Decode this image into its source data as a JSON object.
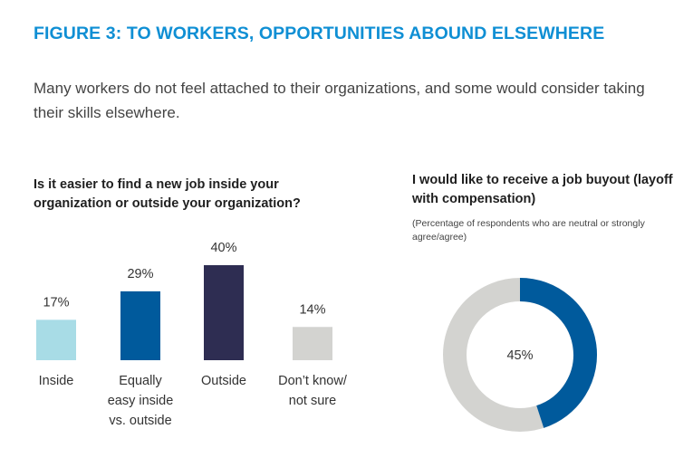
{
  "figure": {
    "title": "FIGURE 3: TO WORKERS, OPPORTUNITIES ABOUND ELSEWHERE",
    "subtitle": "Many workers do not feel attached to their organizations, and some would consider taking their skills elsewhere."
  },
  "chart_data": [
    {
      "type": "bar",
      "title": "Is it easier to find a new job inside your organization or outside your organization?",
      "categories": [
        [
          "Inside"
        ],
        [
          "Equally",
          "easy inside",
          "vs. outside"
        ],
        [
          "Outside"
        ],
        [
          "Don’t know/",
          "not sure"
        ]
      ],
      "values": [
        17,
        29,
        40,
        14
      ],
      "value_labels": [
        "17%",
        "29%",
        "40%",
        "14%"
      ],
      "colors": [
        "#a8dce6",
        "#005a9c",
        "#2e2d52",
        "#d3d3d0"
      ],
      "ylim": [
        0,
        40
      ],
      "grid": false
    },
    {
      "type": "pie",
      "title": "I would like to receive a job buyout (layoff with compensation)",
      "note": "(Percentage of respondents who are neutral or strongly agree/agree)",
      "values": [
        45,
        55
      ],
      "center_label": "45%",
      "colors": [
        "#005a9c",
        "#d3d3d0"
      ]
    }
  ]
}
